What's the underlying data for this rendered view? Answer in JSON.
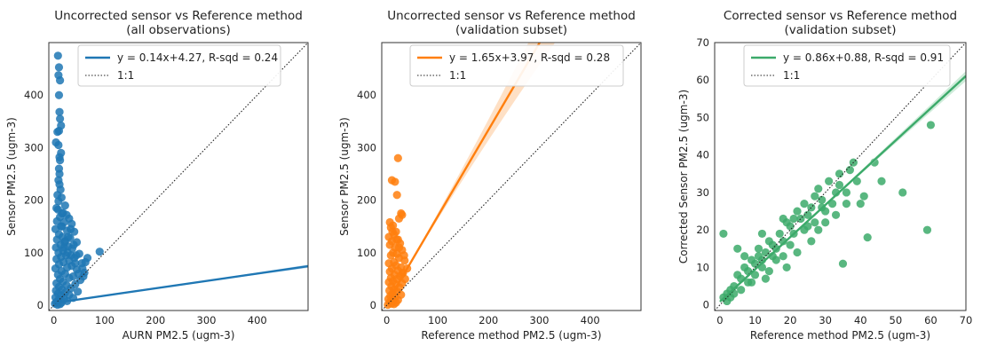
{
  "chart_data": [
    {
      "type": "scatter",
      "title": "Uncorrected sensor vs Reference method",
      "subtitle": "(all observations)",
      "xlabel": "AURN PM2.5 (ugm-3)",
      "ylabel": "Sensor PM2.5 (ugm-3)",
      "xlim": [
        -10,
        500
      ],
      "ylim": [
        -10,
        500
      ],
      "xticks": [
        0,
        100,
        200,
        300,
        400
      ],
      "yticks": [
        0,
        100,
        200,
        300,
        400
      ],
      "color": "#1f77b4",
      "band_color": "#9ec7e6",
      "fit": {
        "slope": 0.14,
        "intercept": 4.27,
        "label": "y = 0.14x+4.27,  R-sqd = 0.24",
        "band": 0.04
      },
      "one_to_one_label": "1:1",
      "legend_position": "top-right",
      "grid": false,
      "points": [
        [
          8,
          475
        ],
        [
          10,
          453
        ],
        [
          9,
          438
        ],
        [
          12,
          428
        ],
        [
          10,
          400
        ],
        [
          11,
          368
        ],
        [
          12,
          355
        ],
        [
          14,
          342
        ],
        [
          10,
          332
        ],
        [
          4,
          310
        ],
        [
          9,
          305
        ],
        [
          11,
          282
        ],
        [
          12,
          276
        ],
        [
          10,
          260
        ],
        [
          9,
          238
        ],
        [
          11,
          230
        ],
        [
          13,
          220
        ],
        [
          7,
          210
        ],
        [
          15,
          205
        ],
        [
          9,
          198
        ],
        [
          22,
          190
        ],
        [
          5,
          185
        ],
        [
          8,
          182
        ],
        [
          18,
          176
        ],
        [
          25,
          172
        ],
        [
          12,
          168
        ],
        [
          30,
          165
        ],
        [
          6,
          160
        ],
        [
          20,
          158
        ],
        [
          35,
          155
        ],
        [
          14,
          150
        ],
        [
          3,
          145
        ],
        [
          26,
          142
        ],
        [
          40,
          140
        ],
        [
          10,
          135
        ],
        [
          17,
          130
        ],
        [
          32,
          128
        ],
        [
          6,
          125
        ],
        [
          22,
          122
        ],
        [
          45,
          120
        ],
        [
          13,
          115
        ],
        [
          28,
          112
        ],
        [
          4,
          110
        ],
        [
          36,
          108
        ],
        [
          18,
          104
        ],
        [
          9,
          100
        ],
        [
          50,
          98
        ],
        [
          24,
          95
        ],
        [
          14,
          92
        ],
        [
          40,
          90
        ],
        [
          5,
          88
        ],
        [
          30,
          85
        ],
        [
          19,
          82
        ],
        [
          55,
          80
        ],
        [
          10,
          78
        ],
        [
          35,
          75
        ],
        [
          26,
          72
        ],
        [
          3,
          70
        ],
        [
          45,
          68
        ],
        [
          15,
          65
        ],
        [
          60,
          62
        ],
        [
          22,
          60
        ],
        [
          8,
          58
        ],
        [
          38,
          55
        ],
        [
          30,
          52
        ],
        [
          12,
          50
        ],
        [
          52,
          48
        ],
        [
          18,
          45
        ],
        [
          5,
          42
        ],
        [
          42,
          40
        ],
        [
          25,
          38
        ],
        [
          10,
          35
        ],
        [
          33,
          32
        ],
        [
          16,
          30
        ],
        [
          4,
          28
        ],
        [
          47,
          26
        ],
        [
          22,
          24
        ],
        [
          8,
          22
        ],
        [
          30,
          20
        ],
        [
          14,
          18
        ],
        [
          3,
          15
        ],
        [
          38,
          14
        ],
        [
          20,
          12
        ],
        [
          9,
          10
        ],
        [
          26,
          8
        ],
        [
          5,
          6
        ],
        [
          15,
          5
        ],
        [
          2,
          3
        ],
        [
          12,
          2
        ],
        [
          7,
          1
        ],
        [
          20,
          110
        ],
        [
          28,
          130
        ],
        [
          16,
          175
        ],
        [
          34,
          95
        ],
        [
          42,
          80
        ],
        [
          48,
          60
        ],
        [
          56,
          70
        ],
        [
          62,
          82
        ],
        [
          66,
          90
        ],
        [
          58,
          55
        ],
        [
          90,
          102
        ],
        [
          11,
          250
        ],
        [
          14,
          290
        ],
        [
          7,
          330
        ],
        [
          16,
          150
        ],
        [
          21,
          120
        ],
        [
          27,
          100
        ],
        [
          33,
          145
        ],
        [
          39,
          115
        ],
        [
          44,
          95
        ]
      ]
    },
    {
      "type": "scatter",
      "title": "Uncorrected sensor vs Reference method",
      "subtitle": "(validation subset)",
      "xlabel": "Reference method PM2.5 (ugm-3)",
      "ylabel": "Sensor PM2.5 (ugm-3)",
      "xlim": [
        -10,
        500
      ],
      "ylim": [
        -10,
        500
      ],
      "xticks": [
        0,
        100,
        200,
        300,
        400
      ],
      "yticks": [
        0,
        100,
        200,
        300,
        400
      ],
      "color": "#ff7f0e",
      "band_color": "#fdd0a6",
      "fit": {
        "slope": 1.65,
        "intercept": 3.97,
        "label": "y = 1.65x+3.97,  R-sqd = 0.28",
        "band": 0.12
      },
      "one_to_one_label": "1:1",
      "legend_position": "top-right",
      "grid": false,
      "points": [
        [
          22,
          280
        ],
        [
          10,
          238
        ],
        [
          16,
          235
        ],
        [
          20,
          210
        ],
        [
          28,
          175
        ],
        [
          30,
          172
        ],
        [
          24,
          165
        ],
        [
          6,
          158
        ],
        [
          12,
          152
        ],
        [
          8,
          148
        ],
        [
          18,
          140
        ],
        [
          14,
          135
        ],
        [
          4,
          130
        ],
        [
          22,
          125
        ],
        [
          10,
          122
        ],
        [
          26,
          118
        ],
        [
          6,
          115
        ],
        [
          16,
          110
        ],
        [
          30,
          105
        ],
        [
          12,
          100
        ],
        [
          20,
          98
        ],
        [
          8,
          95
        ],
        [
          24,
          90
        ],
        [
          35,
          85
        ],
        [
          14,
          82
        ],
        [
          4,
          80
        ],
        [
          18,
          76
        ],
        [
          28,
          72
        ],
        [
          10,
          70
        ],
        [
          22,
          66
        ],
        [
          6,
          64
        ],
        [
          32,
          62
        ],
        [
          15,
          58
        ],
        [
          26,
          55
        ],
        [
          8,
          52
        ],
        [
          20,
          50
        ],
        [
          12,
          46
        ],
        [
          4,
          44
        ],
        [
          30,
          42
        ],
        [
          18,
          40
        ],
        [
          9,
          36
        ],
        [
          25,
          34
        ],
        [
          14,
          30
        ],
        [
          5,
          28
        ],
        [
          20,
          26
        ],
        [
          11,
          22
        ],
        [
          28,
          20
        ],
        [
          7,
          18
        ],
        [
          16,
          15
        ],
        [
          3,
          12
        ],
        [
          22,
          10
        ],
        [
          12,
          8
        ],
        [
          6,
          6
        ],
        [
          18,
          5
        ],
        [
          9,
          3
        ],
        [
          14,
          2
        ],
        [
          2,
          1
        ],
        [
          40,
          70
        ],
        [
          34,
          95
        ],
        [
          24,
          110
        ],
        [
          19,
          125
        ],
        [
          11,
          140
        ],
        [
          30,
          60
        ],
        [
          36,
          50
        ]
      ]
    },
    {
      "type": "scatter",
      "title": "Corrected sensor vs Reference method",
      "subtitle": "(validation subset)",
      "xlabel": "Reference method PM2.5 (ugm-3)",
      "ylabel": "Corrected Sensor PM2.5 (ugm-3)",
      "xlim": [
        -1.5,
        70
      ],
      "ylim": [
        -1.5,
        70
      ],
      "xticks": [
        0,
        10,
        20,
        30,
        40,
        50,
        60,
        70
      ],
      "yticks": [
        0,
        10,
        20,
        30,
        40,
        50,
        60,
        70
      ],
      "color": "#3caa6a",
      "band_color": "#b6e2c6",
      "fit": {
        "slope": 0.86,
        "intercept": 0.88,
        "label": "y = 0.86x+0.88,  R-sqd = 0.91",
        "band": 0.02
      },
      "one_to_one_label": "1:1",
      "legend_position": "top-right",
      "grid": false,
      "points": [
        [
          60,
          48
        ],
        [
          46,
          33
        ],
        [
          52,
          30
        ],
        [
          59,
          20
        ],
        [
          44,
          38
        ],
        [
          38,
          38
        ],
        [
          34,
          35
        ],
        [
          41,
          29
        ],
        [
          36,
          30
        ],
        [
          40,
          27
        ],
        [
          35,
          11
        ],
        [
          42,
          18
        ],
        [
          31,
          33
        ],
        [
          33,
          30
        ],
        [
          29,
          28
        ],
        [
          30,
          25
        ],
        [
          28,
          31
        ],
        [
          26,
          26
        ],
        [
          27,
          22
        ],
        [
          25,
          24
        ],
        [
          23,
          23
        ],
        [
          24,
          20
        ],
        [
          22,
          25
        ],
        [
          21,
          19
        ],
        [
          20,
          21
        ],
        [
          19,
          22
        ],
        [
          18,
          17
        ],
        [
          20,
          16
        ],
        [
          17,
          19
        ],
        [
          16,
          15
        ],
        [
          15,
          16
        ],
        [
          14,
          17
        ],
        [
          15,
          13
        ],
        [
          13,
          14
        ],
        [
          12,
          12
        ],
        [
          11,
          13
        ],
        [
          12,
          10
        ],
        [
          10,
          11
        ],
        [
          9,
          12
        ],
        [
          10,
          8
        ],
        [
          8,
          9
        ],
        [
          7,
          10
        ],
        [
          8,
          6
        ],
        [
          6,
          7
        ],
        [
          5,
          8
        ],
        [
          6,
          4
        ],
        [
          4,
          5
        ],
        [
          3,
          4
        ],
        [
          4,
          3
        ],
        [
          2,
          3
        ],
        [
          3,
          2
        ],
        [
          1,
          2
        ],
        [
          2,
          1
        ],
        [
          1,
          19
        ],
        [
          5,
          15
        ],
        [
          12,
          19
        ],
        [
          18,
          13
        ],
        [
          22,
          14
        ],
        [
          26,
          17
        ],
        [
          30,
          22
        ],
        [
          32,
          27
        ],
        [
          34,
          32
        ],
        [
          37,
          36
        ],
        [
          39,
          33
        ],
        [
          24,
          27
        ],
        [
          16,
          12
        ],
        [
          9,
          6
        ],
        [
          7,
          13
        ],
        [
          13,
          7
        ],
        [
          28,
          20
        ],
        [
          21,
          23
        ],
        [
          27,
          29
        ],
        [
          19,
          10
        ],
        [
          33,
          24
        ],
        [
          36,
          27
        ],
        [
          14,
          9
        ],
        [
          11,
          15
        ],
        [
          18,
          23
        ],
        [
          25,
          21
        ],
        [
          29,
          26
        ]
      ]
    }
  ]
}
